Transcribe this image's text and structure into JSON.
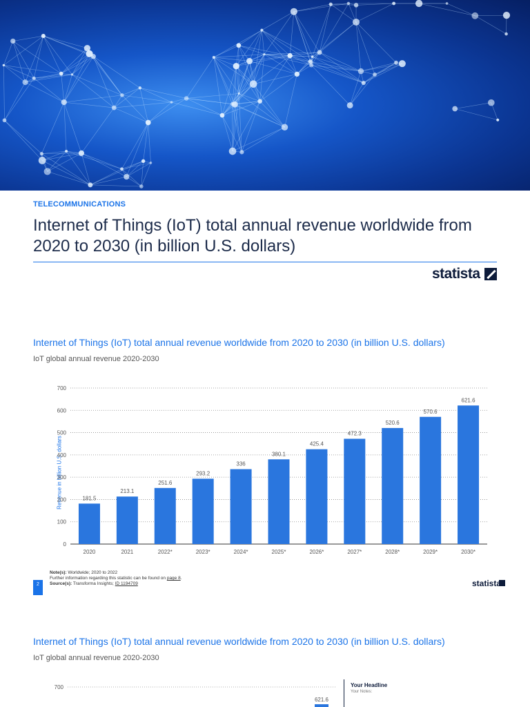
{
  "page": {
    "category": "TELECOMMUNICATIONS",
    "headline": "Internet of Things (IoT) total annual revenue worldwide from 2020 to 2030 (in billion U.S. dollars)",
    "brand": "statista"
  },
  "statistic": {
    "title": "Internet of Things (IoT) total annual revenue worldwide from 2020 to 2030 (in billion U.S. dollars)",
    "subtitle": "IoT global annual revenue 2020-2030",
    "page_number": "2",
    "notes_label": "Note(s):",
    "notes": "Worldwide; 2020 to 2022",
    "further_info": "Further information regarding this statistic can be found on",
    "further_link": "page 8",
    "source_label": "Source(s):",
    "source": "Transforma Insights;",
    "source_id": "ID 1194709"
  },
  "second": {
    "title": "Internet of Things (IoT) total annual revenue worldwide from 2020 to 2030 (in billion U.S. dollars)",
    "subtitle": "IoT global annual revenue 2020-2030",
    "y_top_tick": "700",
    "last_value_label": "621.6",
    "notes_headline": "Your Headline",
    "notes_text": "Your Notes:"
  },
  "chart_data": {
    "type": "bar",
    "categories": [
      "2020",
      "2021",
      "2022*",
      "2023*",
      "2024*",
      "2025*",
      "2026*",
      "2027*",
      "2028*",
      "2029*",
      "2030*"
    ],
    "values": [
      181.5,
      213.1,
      251.6,
      293.2,
      336,
      380.1,
      425.4,
      472.3,
      520.6,
      570.6,
      621.6
    ],
    "ylabel": "Revenue in billion U.S. dollars",
    "ylim": [
      0,
      700
    ],
    "yticks": [
      0,
      100,
      200,
      300,
      400,
      500,
      600,
      700
    ],
    "grid": true,
    "bar_color": "#2a76de"
  },
  "colors": {
    "accent": "#1a73e8",
    "brand_dark": "#0d1b3a"
  }
}
